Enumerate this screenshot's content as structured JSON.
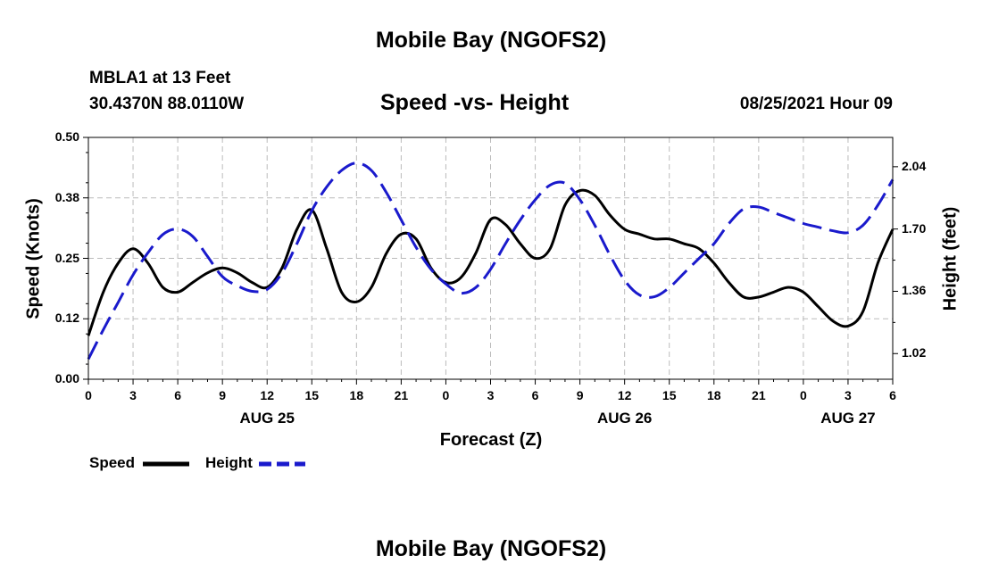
{
  "header": {
    "title": "Mobile Bay (NGOFS2)",
    "station": "MBLA1 at 13 Feet",
    "coords": "30.4370N  88.0110W",
    "subtitle": "Speed -vs- Height",
    "datetime": "08/25/2021 Hour 09"
  },
  "footer": {
    "title": "Mobile Bay (NGOFS2)"
  },
  "legend": {
    "speed_label": "Speed",
    "height_label": "Height"
  },
  "colors": {
    "speed": "#000000",
    "height": "#1a1acc",
    "grid": "#bbbbbb"
  },
  "chart_data": {
    "type": "line",
    "xlabel": "Forecast (Z)",
    "ylabel_left": "Speed (Knots)",
    "ylabel_right": "Height (feet)",
    "x_ticks": [
      "0",
      "3",
      "6",
      "9",
      "12",
      "15",
      "18",
      "21",
      "0",
      "3",
      "6",
      "9",
      "12",
      "15",
      "18",
      "21",
      "0",
      "3",
      "6"
    ],
    "date_labels": [
      {
        "label": "AUG 25",
        "hour": 12
      },
      {
        "label": "AUG 26",
        "hour": 36
      },
      {
        "label": "AUG 27",
        "hour": 51
      }
    ],
    "xlim": [
      0,
      54
    ],
    "ylim_left": [
      0,
      0.5
    ],
    "left_ticks": [
      "0.00",
      "0.12",
      "0.25",
      "0.38",
      "0.50"
    ],
    "ylim_right": [
      0.88,
      2.2
    ],
    "right_ticks": [
      {
        "label": "1.02",
        "value": 1.02
      },
      {
        "label": "1.36",
        "value": 1.36
      },
      {
        "label": "1.70",
        "value": 1.7
      },
      {
        "label": "2.04",
        "value": 2.04
      }
    ],
    "grid": true,
    "series": [
      {
        "name": "Speed",
        "axis": "left",
        "style": "solid",
        "x": [
          0,
          1,
          2,
          3,
          4,
          5,
          6,
          7,
          8,
          9,
          10,
          11,
          12,
          13,
          14,
          15,
          16,
          17,
          18,
          19,
          20,
          21,
          22,
          23,
          24,
          25,
          26,
          27,
          28,
          29,
          30,
          31,
          32,
          33,
          34,
          35,
          36,
          37,
          38,
          39,
          40,
          41,
          42,
          43,
          44,
          45,
          46,
          47,
          48,
          49,
          50,
          51,
          52,
          53,
          54
        ],
        "y": [
          0.09,
          0.18,
          0.24,
          0.27,
          0.24,
          0.19,
          0.18,
          0.2,
          0.22,
          0.23,
          0.22,
          0.2,
          0.19,
          0.23,
          0.31,
          0.35,
          0.27,
          0.18,
          0.16,
          0.19,
          0.26,
          0.3,
          0.29,
          0.23,
          0.2,
          0.21,
          0.26,
          0.33,
          0.32,
          0.28,
          0.25,
          0.27,
          0.36,
          0.39,
          0.38,
          0.34,
          0.31,
          0.3,
          0.29,
          0.29,
          0.28,
          0.27,
          0.24,
          0.2,
          0.17,
          0.17,
          0.18,
          0.19,
          0.18,
          0.15,
          0.12,
          0.11,
          0.14,
          0.24,
          0.31
        ]
      },
      {
        "name": "Height",
        "axis": "right",
        "style": "dashed",
        "x": [
          0,
          1,
          2,
          3,
          4,
          5,
          6,
          7,
          8,
          9,
          10,
          11,
          12,
          13,
          14,
          15,
          16,
          17,
          18,
          19,
          20,
          21,
          22,
          23,
          24,
          25,
          26,
          27,
          28,
          29,
          30,
          31,
          32,
          33,
          34,
          35,
          36,
          37,
          38,
          39,
          40,
          41,
          42,
          43,
          44,
          45,
          46,
          47,
          48,
          49,
          50,
          51,
          52,
          53,
          54
        ],
        "y": [
          0.99,
          1.15,
          1.3,
          1.45,
          1.57,
          1.67,
          1.7,
          1.66,
          1.55,
          1.44,
          1.39,
          1.36,
          1.37,
          1.46,
          1.62,
          1.8,
          1.93,
          2.02,
          2.06,
          2.02,
          1.9,
          1.75,
          1.6,
          1.48,
          1.4,
          1.35,
          1.38,
          1.48,
          1.62,
          1.75,
          1.86,
          1.94,
          1.95,
          1.86,
          1.72,
          1.56,
          1.42,
          1.34,
          1.33,
          1.38,
          1.46,
          1.54,
          1.62,
          1.73,
          1.81,
          1.82,
          1.79,
          1.76,
          1.73,
          1.71,
          1.69,
          1.68,
          1.72,
          1.83,
          1.97
        ]
      }
    ]
  }
}
